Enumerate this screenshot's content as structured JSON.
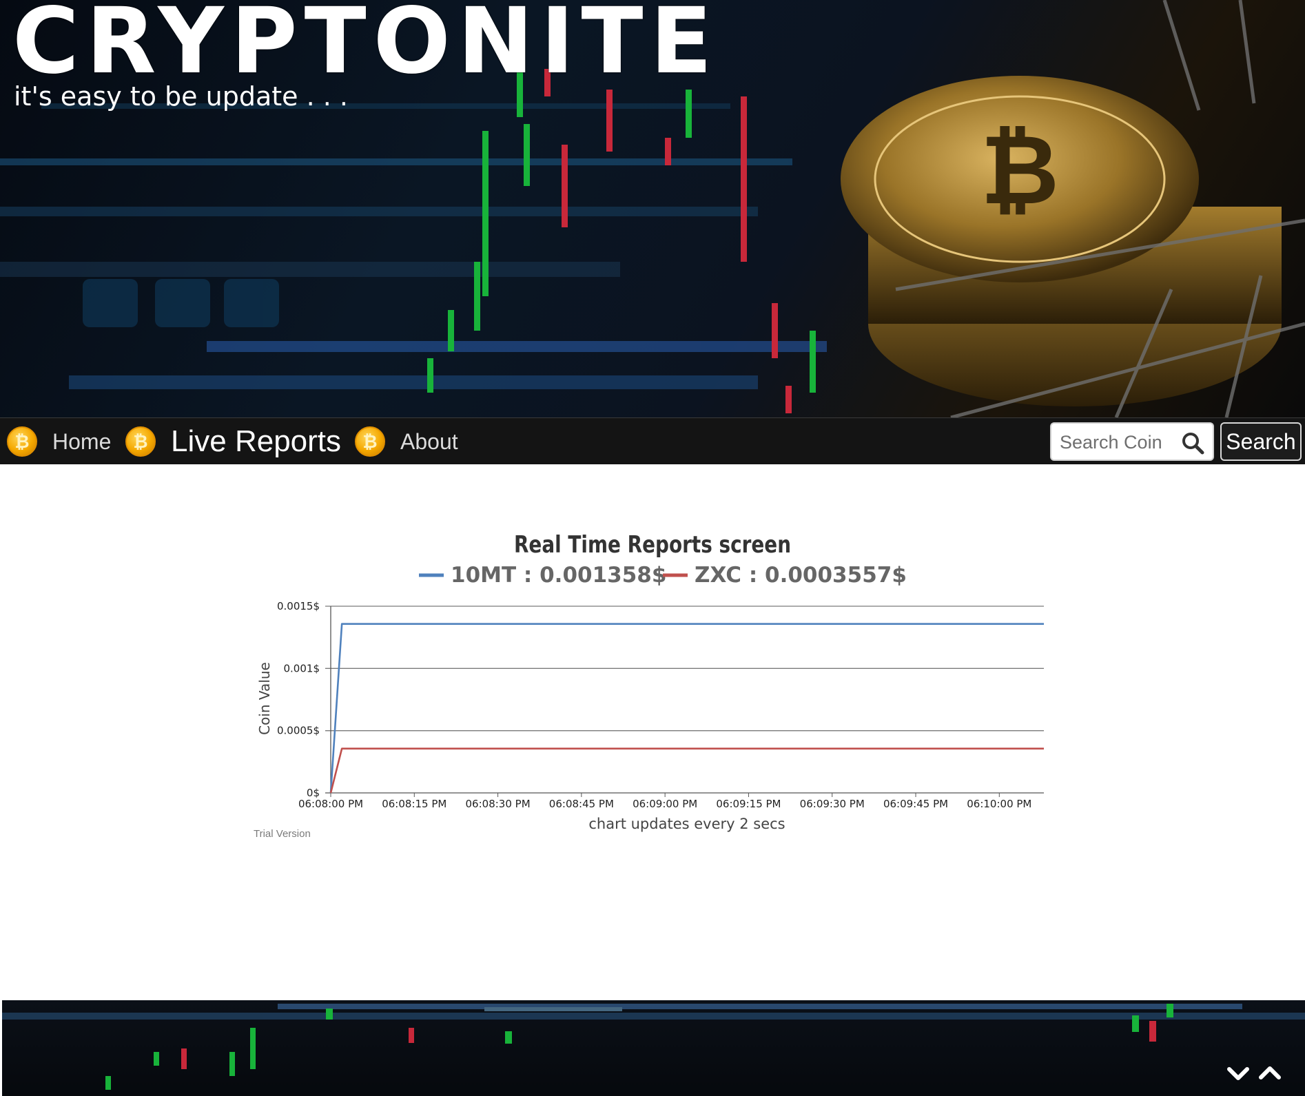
{
  "header": {
    "brand_title": "CRYPTONITE",
    "tagline": "it's easy to be update . . ."
  },
  "nav": {
    "items": [
      {
        "label": "Home",
        "icon": "bitcoin-coin-icon",
        "active": false
      },
      {
        "label": "Live Reports",
        "icon": "bitcoin-coin-icon",
        "active": true
      },
      {
        "label": "About",
        "icon": "bitcoin-coin-icon",
        "active": false
      }
    ],
    "search_placeholder": "Search Coin",
    "search_button_label": "Search"
  },
  "chart_data": {
    "type": "line",
    "title": "Real Time Reports screen",
    "ylabel": "Coin Value",
    "xlabel": "chart updates every 2 secs",
    "ylim": [
      0,
      0.0015
    ],
    "yticks": [
      {
        "value": 0,
        "label": "0$"
      },
      {
        "value": 0.0005,
        "label": "0.0005$"
      },
      {
        "value": 0.001,
        "label": "0.001$"
      },
      {
        "value": 0.0015,
        "label": "0.0015$"
      }
    ],
    "xticks": [
      "06:08:00 PM",
      "06:08:15 PM",
      "06:08:30 PM",
      "06:08:45 PM",
      "06:09:00 PM",
      "06:09:15 PM",
      "06:09:30 PM",
      "06:09:45 PM",
      "06:10:00 PM"
    ],
    "xlim_seconds": [
      0,
      128
    ],
    "x_unit": "seconds after 06:08:00 PM",
    "grid": true,
    "legend_position": "top-center",
    "series": [
      {
        "name": "10MT : 0.001358$",
        "color": "#4f81bd",
        "points": [
          [
            0,
            0
          ],
          [
            2,
            0.001358
          ],
          [
            128,
            0.001358
          ]
        ]
      },
      {
        "name": "ZXC : 0.0003557$",
        "color": "#c0504d",
        "points": [
          [
            0,
            0
          ],
          [
            2,
            0.0003557
          ],
          [
            128,
            0.0003557
          ]
        ]
      }
    ],
    "watermark": "Trial Version"
  },
  "footer": {
    "scroll_down_icon": "chevron-down-icon",
    "scroll_up_icon": "chevron-up-icon"
  },
  "colors": {
    "navbar_bg": "#141414",
    "coin_gold": "#f5a800",
    "series_blue": "#4f81bd",
    "series_red": "#c0504d"
  }
}
